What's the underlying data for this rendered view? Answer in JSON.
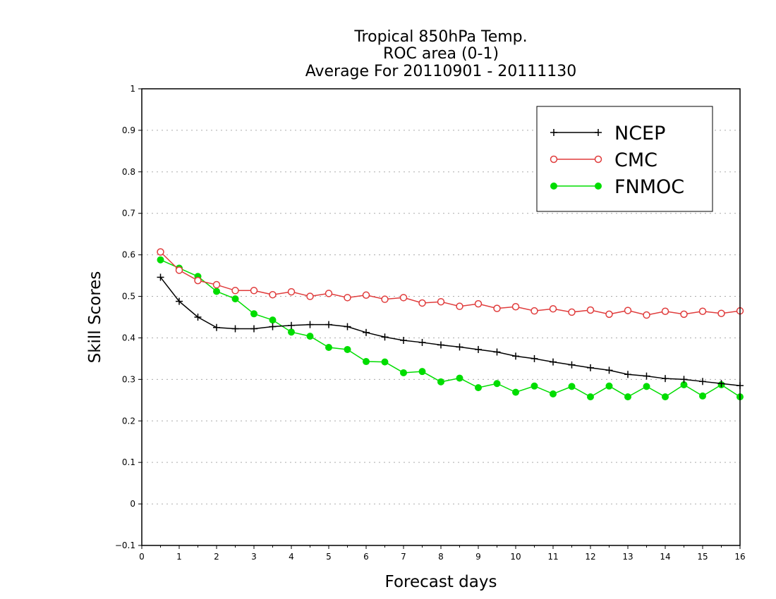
{
  "chart_data": {
    "type": "line",
    "title": [
      "Tropical 850hPa Temp.",
      "ROC area (0-1)",
      "Average For 20110901 - 20111130"
    ],
    "xlabel": "Forecast days",
    "ylabel": "Skill Scores",
    "xlim": [
      0,
      16
    ],
    "ylim": [
      -0.1,
      1
    ],
    "xticks": [
      "0",
      "1",
      "2",
      "3",
      "4",
      "5",
      "6",
      "7",
      "8",
      "9",
      "10",
      "11",
      "12",
      "13",
      "14",
      "15",
      "16"
    ],
    "yticks": [
      "−0.1",
      "0",
      "0.1",
      "0.2",
      "0.3",
      "0.4",
      "0.5",
      "0.6",
      "0.7",
      "0.8",
      "0.9",
      "1"
    ],
    "grid": true,
    "legend_position": "top-right",
    "x": [
      0.5,
      1,
      1.5,
      2,
      2.5,
      3,
      3.5,
      4,
      4.5,
      5,
      5.5,
      6,
      6.5,
      7,
      7.5,
      8,
      8.5,
      9,
      9.5,
      10,
      10.5,
      11,
      11.5,
      12,
      12.5,
      13,
      13.5,
      14,
      14.5,
      15,
      15.5,
      16
    ],
    "series": [
      {
        "name": "NCEP",
        "color": "#000000",
        "marker": "plus",
        "values": [
          0.546,
          0.488,
          0.45,
          0.425,
          0.422,
          0.422,
          0.427,
          0.43,
          0.432,
          0.432,
          0.427,
          0.413,
          0.402,
          0.394,
          0.389,
          0.383,
          0.378,
          0.372,
          0.366,
          0.356,
          0.35,
          0.342,
          0.335,
          0.328,
          0.322,
          0.312,
          0.308,
          0.302,
          0.3,
          0.295,
          0.29,
          0.285
        ]
      },
      {
        "name": "CMC",
        "color": "#e03c3c",
        "marker": "open-circle",
        "values": [
          0.607,
          0.563,
          0.538,
          0.528,
          0.514,
          0.514,
          0.504,
          0.511,
          0.5,
          0.507,
          0.497,
          0.503,
          0.493,
          0.497,
          0.484,
          0.487,
          0.476,
          0.482,
          0.471,
          0.475,
          0.465,
          0.47,
          0.462,
          0.467,
          0.457,
          0.466,
          0.455,
          0.464,
          0.457,
          0.464,
          0.459,
          0.465
        ]
      },
      {
        "name": "FNMOC",
        "color": "#00dd00",
        "marker": "filled-circle",
        "values": [
          0.588,
          0.568,
          0.548,
          0.512,
          0.494,
          0.458,
          0.443,
          0.414,
          0.404,
          0.377,
          0.372,
          0.343,
          0.342,
          0.316,
          0.319,
          0.294,
          0.303,
          0.28,
          0.29,
          0.269,
          0.284,
          0.265,
          0.283,
          0.258,
          0.284,
          0.258,
          0.283,
          0.258,
          0.287,
          0.26,
          0.287,
          0.258
        ]
      }
    ]
  }
}
